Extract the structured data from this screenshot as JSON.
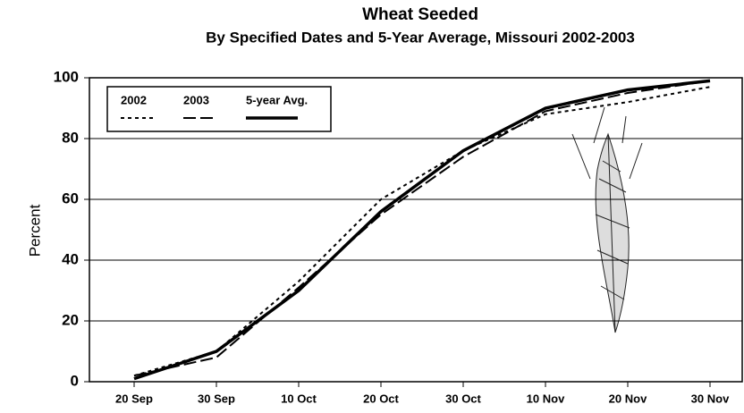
{
  "chart_data": {
    "type": "line",
    "title": "Wheat Seeded",
    "subtitle": "By Specified Dates and 5-Year Average, Missouri 2002-2003",
    "y_label": "Percent",
    "categories": [
      "20 Sep",
      "30 Sep",
      "10 Oct",
      "20 Oct",
      "30 Oct",
      "10 Nov",
      "20 Nov",
      "30 Nov"
    ],
    "series": [
      {
        "name": "2002",
        "color": "#000000",
        "style": "dotted",
        "values": [
          2,
          10,
          33,
          60,
          76,
          88,
          92,
          97
        ]
      },
      {
        "name": "2003",
        "color": "#000000",
        "style": "dashed",
        "values": [
          2,
          8,
          31,
          55,
          74,
          89,
          95,
          99
        ]
      },
      {
        "name": "5-year Avg.",
        "color": "#000000",
        "style": "solid",
        "values": [
          1,
          10,
          30,
          56,
          76,
          90,
          96,
          99
        ]
      }
    ],
    "ylim": [
      0,
      100
    ],
    "yticks": [
      0,
      20,
      40,
      60,
      80,
      100
    ],
    "grid": true,
    "legend": "upper left"
  }
}
